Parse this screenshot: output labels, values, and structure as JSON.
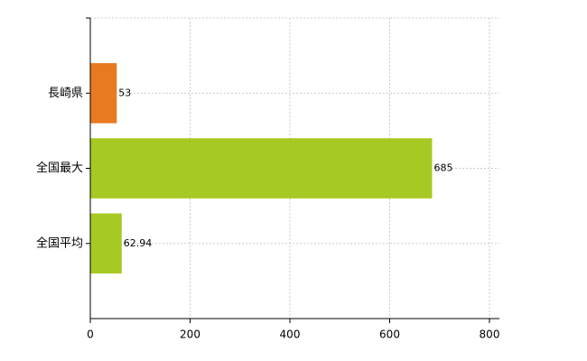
{
  "chart_data": {
    "type": "hbar",
    "categories": [
      "長崎県",
      "全国最大",
      "全国平均"
    ],
    "values": [
      53,
      685,
      62.94
    ],
    "colors": [
      "#e87a22",
      "#a6c924",
      "#a6c924"
    ],
    "xlim": [
      0,
      800
    ],
    "xticks": [
      0,
      200,
      400,
      600,
      800
    ],
    "grid": true
  }
}
